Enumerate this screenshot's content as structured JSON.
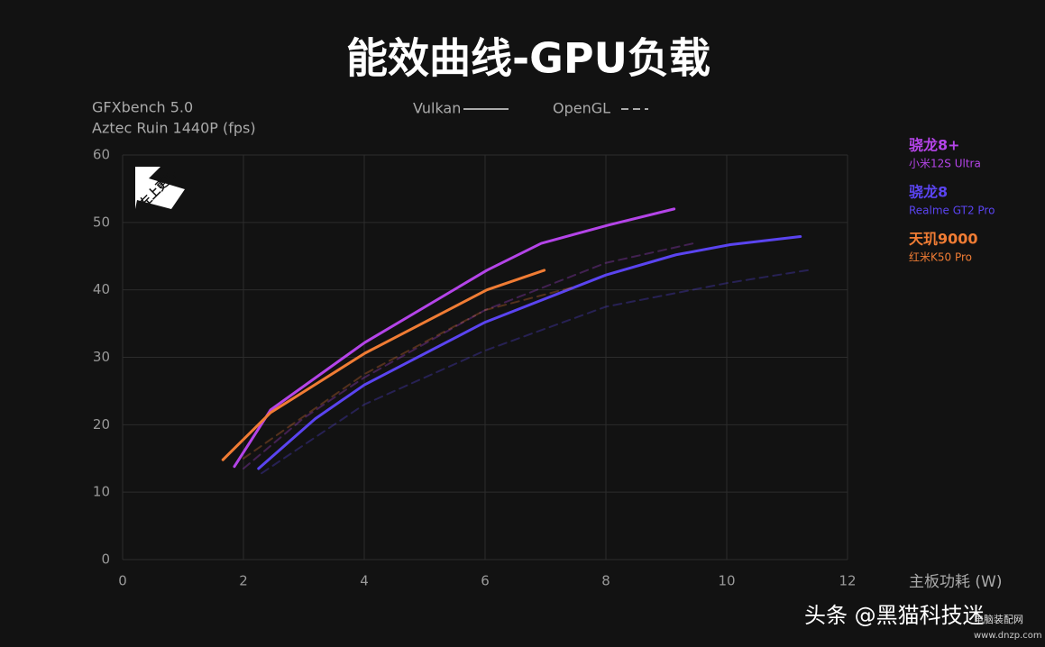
{
  "chart_data": {
    "type": "line",
    "title": "能效曲线-GPU负载",
    "subtitle": [
      "GFXbench 5.0",
      "Aztec Ruin 1440P (fps)"
    ],
    "x_label": "主板功耗 (W)",
    "badge": "左上更好",
    "apis": [
      {
        "name": "Vulkan",
        "dashed": false
      },
      {
        "name": "OpenGL",
        "dashed": true
      }
    ],
    "chips": [
      {
        "name": "骁龙8+",
        "device": "小米12S Ultra",
        "color": "#b444e8",
        "curves": [
          {
            "x": [
              1.85,
              2.45,
              4.01,
              6.03,
              6.93,
              8.04,
              9.13
            ],
            "values": [
              13.8,
              22.2,
              32.2,
              42.9,
              46.9,
              49.6,
              52
            ]
          },
          {
            "x": [
              2,
              3,
              4,
              6,
              8,
              9.5
            ],
            "values": [
              13.5,
              21,
              27,
              37,
              44,
              47
            ]
          }
        ]
      },
      {
        "name": "骁龙8",
        "device": "Realme GT2 Pro",
        "color": "#5a44f0",
        "curves": [
          {
            "x": [
              2.25,
              3.19,
              4,
              6,
              8,
              9.16,
              10.06,
              11.22
            ],
            "values": [
              13.5,
              20.9,
              25.9,
              35.2,
              42.2,
              45.2,
              46.7,
              47.9
            ]
          },
          {
            "x": [
              2.3,
              4,
              6,
              8,
              10,
              11.4
            ],
            "values": [
              12.8,
              23,
              31,
              37.5,
              41,
              43
            ]
          }
        ]
      },
      {
        "name": "天玑9000",
        "device": "红米K50 Pro",
        "color": "#f07c34",
        "curves": [
          {
            "x": [
              1.66,
              2.45,
              4.01,
              6.03,
              6.98
            ],
            "values": [
              14.8,
              21.8,
              30.6,
              40,
              42.9
            ]
          },
          {
            "x": [
              2,
              4,
              6,
              7.5
            ],
            "values": [
              15,
              27.5,
              37,
              40.5
            ]
          }
        ]
      }
    ],
    "xlim": [
      0,
      12
    ],
    "xticks": [
      0,
      2,
      4,
      6,
      8,
      10,
      12
    ],
    "ylim": [
      0,
      60
    ],
    "yticks": [
      0,
      10,
      20,
      30,
      40,
      50,
      60
    ],
    "grid": true
  },
  "watermark": {
    "main": "头条 @黑猫科技迷",
    "site": "电脑装配网",
    "url": "www.dnzp.com"
  }
}
